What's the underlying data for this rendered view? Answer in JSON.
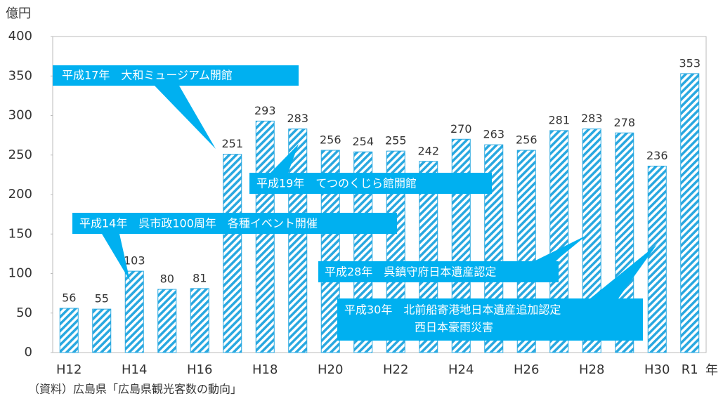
{
  "chart_data": {
    "type": "bar",
    "y_label": "億円",
    "x_label": "年",
    "source": "（資料）広島県「広島県観光客数の動向」",
    "categories": [
      "H12",
      null,
      "H14",
      null,
      "H16",
      null,
      "H18",
      null,
      "H20",
      null,
      "H22",
      null,
      "H24",
      null,
      "H26",
      null,
      "H28",
      null,
      "H30",
      "R1"
    ],
    "values": [
      56,
      55,
      103,
      80,
      81,
      251,
      293,
      283,
      256,
      254,
      255,
      242,
      270,
      263,
      256,
      281,
      283,
      278,
      236,
      353
    ],
    "color": "#29a8e0",
    "ylim": [
      0,
      400
    ],
    "yticks": [
      0,
      50,
      100,
      150,
      200,
      250,
      300,
      350,
      400
    ],
    "annotations": [
      {
        "text": "平成17年　大和ミュージアム開館"
      },
      {
        "text": "平成19年　てつのくじら館開館"
      },
      {
        "text": "平成14年　呉市政100周年　各種イベント開催"
      },
      {
        "text": "平成28年　呉鎮守府日本遺産認定"
      },
      {
        "lines": [
          "平成30年　北前船寄港地日本遺産追加認定",
          "西日本豪雨災害"
        ]
      }
    ]
  }
}
